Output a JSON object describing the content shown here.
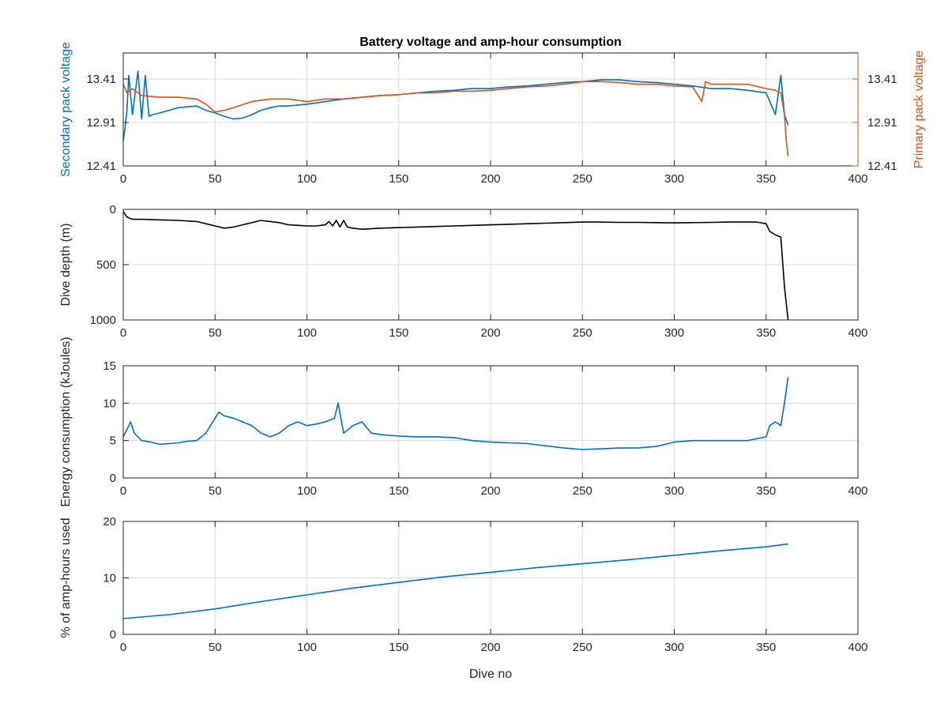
{
  "chart_data": [
    {
      "type": "line",
      "title": "Battery voltage and amp-hour consumption",
      "ylabel": "Secondary pack voltage",
      "y2label": "Primary pack voltage",
      "xlim": [
        0,
        400
      ],
      "xticks": [
        0,
        50,
        100,
        150,
        200,
        250,
        300,
        350,
        400
      ],
      "ylim": [
        12.41,
        13.71
      ],
      "yticks": [
        "12.41",
        "12.91",
        "13.41"
      ],
      "y2lim": [
        12.41,
        13.71
      ],
      "y2ticks": [
        "12.41",
        "12.91",
        "13.41"
      ],
      "colors": {
        "secondary": "#0072bd",
        "primary": "#d95319"
      },
      "series": [
        {
          "name": "Secondary pack voltage",
          "color": "#0072bd",
          "x": [
            0,
            1,
            2,
            3,
            5,
            8,
            10,
            12,
            14,
            16,
            20,
            25,
            30,
            40,
            45,
            50,
            55,
            60,
            65,
            70,
            75,
            80,
            85,
            90,
            100,
            110,
            120,
            130,
            140,
            150,
            160,
            170,
            180,
            190,
            200,
            210,
            220,
            230,
            240,
            250,
            260,
            270,
            280,
            290,
            300,
            310,
            320,
            330,
            340,
            350,
            355,
            358,
            360,
            362
          ],
          "y": [
            12.7,
            12.85,
            13.05,
            13.45,
            13.0,
            13.5,
            12.95,
            13.45,
            12.98,
            13.0,
            13.02,
            13.05,
            13.08,
            13.1,
            13.05,
            13.02,
            12.98,
            12.95,
            12.96,
            13.0,
            13.05,
            13.08,
            13.1,
            13.1,
            13.12,
            13.15,
            13.18,
            13.2,
            13.22,
            13.23,
            13.25,
            13.27,
            13.28,
            13.3,
            13.3,
            13.32,
            13.33,
            13.35,
            13.37,
            13.38,
            13.4,
            13.4,
            13.38,
            13.37,
            13.35,
            13.33,
            13.3,
            13.3,
            13.28,
            13.25,
            13.0,
            13.45,
            13.0,
            12.88
          ]
        },
        {
          "name": "Primary pack voltage",
          "axis": "right",
          "color": "#d95319",
          "x": [
            0,
            2,
            5,
            10,
            20,
            30,
            40,
            45,
            50,
            55,
            60,
            70,
            80,
            90,
            100,
            110,
            120,
            130,
            140,
            150,
            160,
            170,
            180,
            190,
            200,
            210,
            220,
            230,
            240,
            250,
            260,
            270,
            280,
            290,
            300,
            310,
            315,
            317,
            320,
            330,
            340,
            350,
            355,
            358,
            360,
            361,
            362
          ],
          "y": [
            13.35,
            13.25,
            13.3,
            13.22,
            13.2,
            13.2,
            13.18,
            13.12,
            13.03,
            13.05,
            13.08,
            13.15,
            13.18,
            13.18,
            13.15,
            13.18,
            13.18,
            13.2,
            13.22,
            13.23,
            13.25,
            13.25,
            13.27,
            13.27,
            13.28,
            13.3,
            13.32,
            13.33,
            13.35,
            13.38,
            13.38,
            13.37,
            13.35,
            13.35,
            13.33,
            13.32,
            13.15,
            13.38,
            13.35,
            13.35,
            13.35,
            13.3,
            13.28,
            13.25,
            13.0,
            12.7,
            12.52
          ]
        }
      ]
    },
    {
      "type": "line",
      "ylabel": "Dive depth (m)",
      "xlim": [
        0,
        400
      ],
      "xticks": [
        0,
        50,
        100,
        150,
        200,
        250,
        300,
        350,
        400
      ],
      "ylim": [
        0,
        1000
      ],
      "yreverse": true,
      "yticks": [
        0,
        500,
        1000
      ],
      "series": [
        {
          "color": "#000000",
          "x": [
            0,
            2,
            5,
            10,
            20,
            30,
            40,
            45,
            50,
            55,
            60,
            65,
            70,
            75,
            80,
            85,
            90,
            100,
            105,
            110,
            112,
            114,
            116,
            118,
            120,
            122,
            125,
            130,
            140,
            150,
            160,
            170,
            180,
            190,
            200,
            210,
            220,
            230,
            240,
            250,
            260,
            270,
            280,
            290,
            300,
            310,
            320,
            330,
            340,
            345,
            350,
            352,
            355,
            358,
            360,
            362
          ],
          "y": [
            20,
            70,
            90,
            90,
            95,
            100,
            110,
            130,
            150,
            170,
            160,
            140,
            120,
            100,
            110,
            120,
            140,
            150,
            150,
            140,
            110,
            150,
            100,
            160,
            100,
            160,
            170,
            180,
            170,
            165,
            160,
            155,
            150,
            145,
            140,
            135,
            130,
            125,
            120,
            115,
            115,
            118,
            118,
            120,
            122,
            120,
            118,
            115,
            115,
            115,
            130,
            200,
            230,
            250,
            700,
            1000
          ]
        }
      ]
    },
    {
      "type": "line",
      "ylabel": "Energy consumption (kJoules)",
      "xlim": [
        0,
        400
      ],
      "xticks": [
        0,
        50,
        100,
        150,
        200,
        250,
        300,
        350,
        400
      ],
      "ylim": [
        0,
        15
      ],
      "yticks": [
        0,
        5,
        10,
        15
      ],
      "series": [
        {
          "color": "#0072bd",
          "x": [
            0,
            2,
            4,
            6,
            8,
            10,
            15,
            20,
            25,
            30,
            35,
            40,
            45,
            50,
            52,
            55,
            60,
            65,
            70,
            75,
            80,
            85,
            90,
            95,
            100,
            105,
            110,
            115,
            117,
            120,
            125,
            130,
            135,
            140,
            150,
            160,
            170,
            180,
            190,
            200,
            210,
            220,
            230,
            240,
            250,
            260,
            270,
            280,
            290,
            300,
            310,
            320,
            330,
            340,
            350,
            352,
            355,
            358,
            360,
            362
          ],
          "y": [
            5.5,
            6.5,
            7.5,
            6.0,
            5.5,
            5.0,
            4.8,
            4.5,
            4.6,
            4.7,
            4.9,
            5.0,
            6.0,
            8.0,
            8.8,
            8.3,
            8.0,
            7.5,
            7.0,
            6.0,
            5.5,
            6.0,
            7.0,
            7.5,
            7.0,
            7.2,
            7.5,
            8.0,
            10.0,
            6.0,
            7.0,
            7.5,
            6.0,
            5.8,
            5.6,
            5.5,
            5.5,
            5.4,
            5.0,
            4.8,
            4.7,
            4.6,
            4.3,
            4.0,
            3.8,
            3.9,
            4.0,
            4.0,
            4.2,
            4.8,
            5.0,
            5.0,
            5.0,
            5.0,
            5.5,
            7.0,
            7.5,
            7.0,
            10.0,
            13.5
          ]
        }
      ]
    },
    {
      "type": "line",
      "ylabel": "% of amp-hours used",
      "xlabel": "Dive no",
      "xlim": [
        0,
        400
      ],
      "xticks": [
        0,
        50,
        100,
        150,
        200,
        250,
        300,
        350,
        400
      ],
      "ylim": [
        0,
        20
      ],
      "yticks": [
        0,
        10,
        20
      ],
      "series": [
        {
          "color": "#0072bd",
          "x": [
            0,
            25,
            50,
            75,
            100,
            125,
            150,
            175,
            200,
            225,
            250,
            275,
            300,
            325,
            350,
            362
          ],
          "y": [
            2.8,
            3.5,
            4.5,
            5.8,
            7.0,
            8.2,
            9.2,
            10.2,
            11.0,
            11.8,
            12.5,
            13.2,
            14.0,
            14.8,
            15.5,
            16.0
          ]
        }
      ]
    }
  ]
}
